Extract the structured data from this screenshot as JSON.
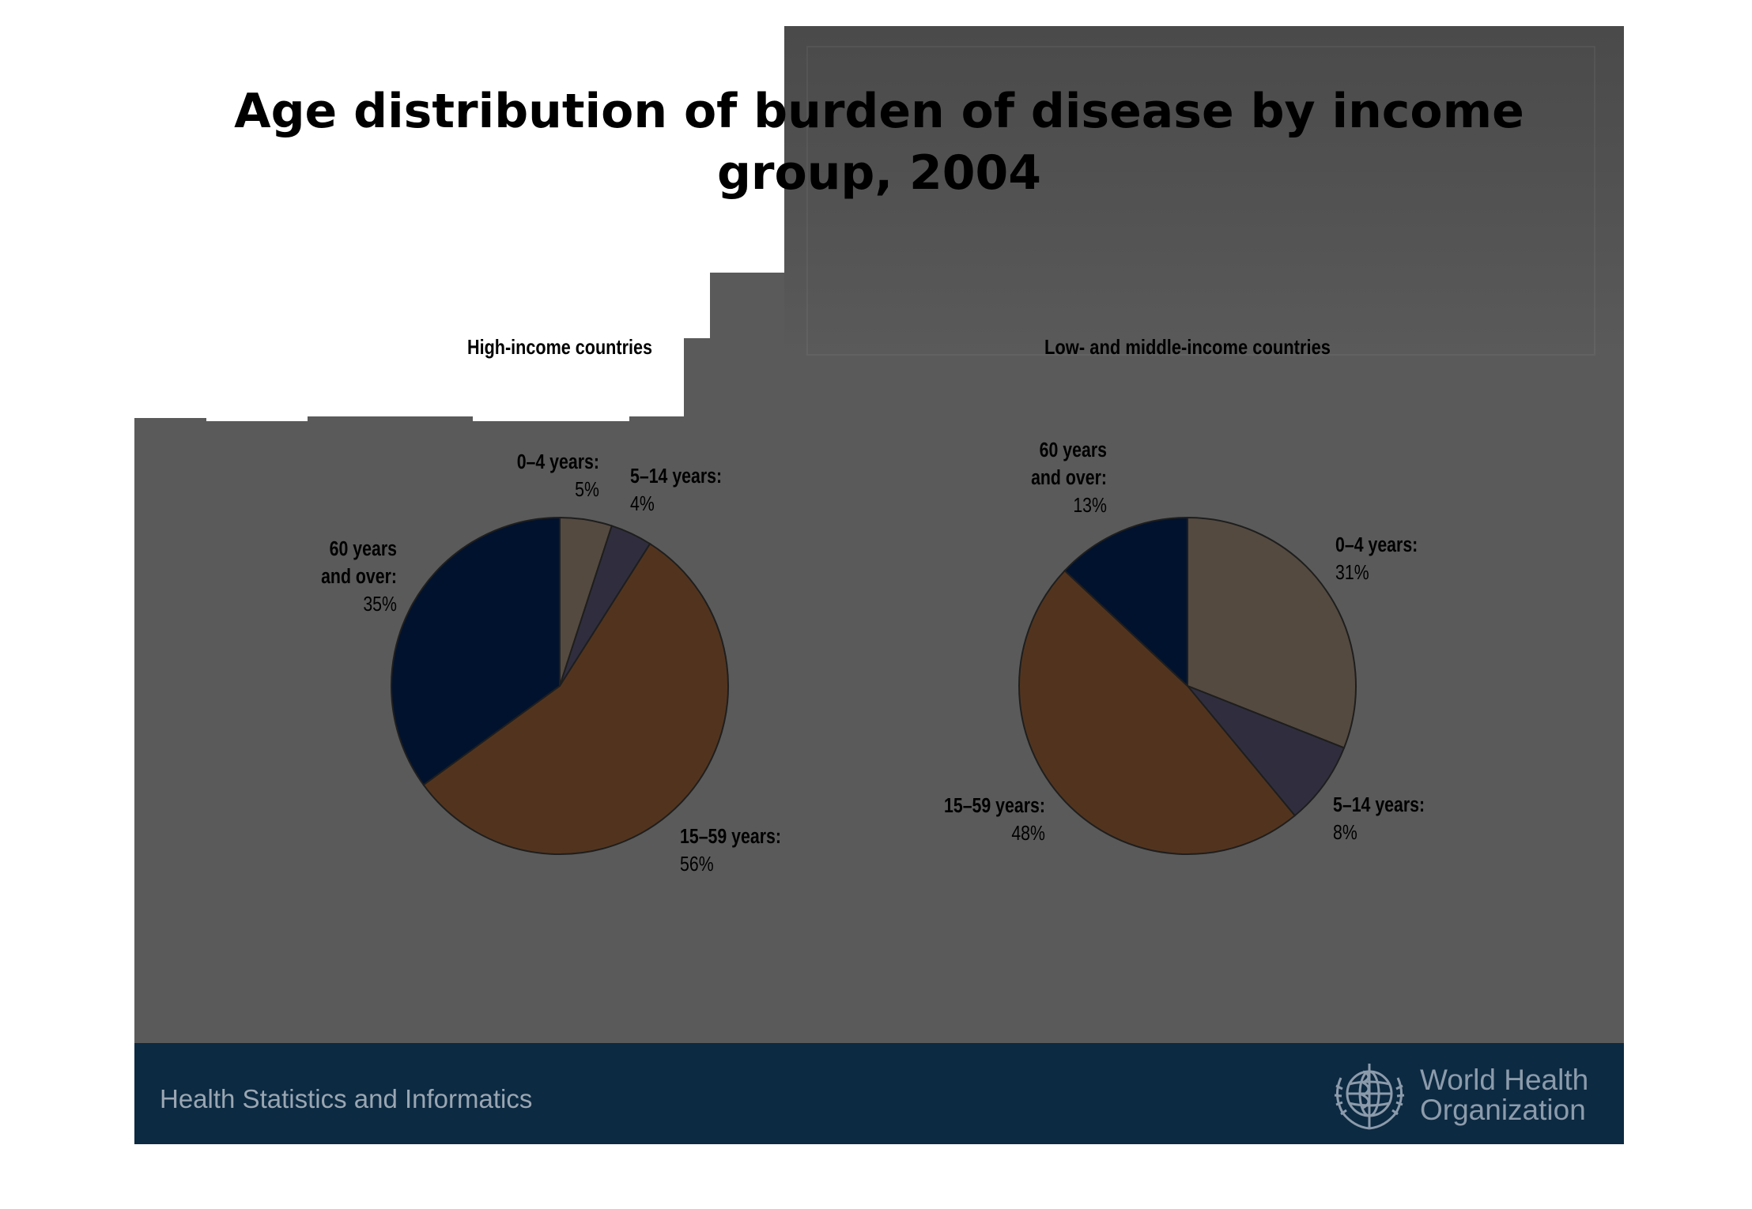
{
  "slide": {
    "title_line1": "Age distribution of burden of disease by income",
    "title_line2": "group, 2004"
  },
  "footer": {
    "department": "Health Statistics and Informatics",
    "org_line1": "World Health",
    "org_line2": "Organization",
    "logo_icon": "who-emblem-icon"
  },
  "colors": {
    "slide_bg": "#5a5a5a",
    "footer_bg": "#0c2a42",
    "age_0_4": "#544a40",
    "age_5_14": "#302e3e",
    "age_15_59": "#52341e",
    "age_60_plus": "#01122e"
  },
  "chart_data": [
    {
      "type": "pie",
      "subtitle": "High-income countries",
      "slices": [
        {
          "label_line1": "0–4 years:",
          "label_line2": "",
          "value": 5,
          "value_text": "5%",
          "color": "#544a40"
        },
        {
          "label_line1": "5–14 years:",
          "label_line2": "",
          "value": 4,
          "value_text": "4%",
          "color": "#302e3e"
        },
        {
          "label_line1": "15–59 years:",
          "label_line2": "",
          "value": 56,
          "value_text": "56%",
          "color": "#52341e"
        },
        {
          "label_line1": "60 years",
          "label_line2": "and over:",
          "value": 35,
          "value_text": "35%",
          "color": "#01122e"
        }
      ]
    },
    {
      "type": "pie",
      "subtitle": "Low- and middle-income countries",
      "slices": [
        {
          "label_line1": "0–4 years:",
          "label_line2": "",
          "value": 31,
          "value_text": "31%",
          "color": "#544a40"
        },
        {
          "label_line1": "5–14 years:",
          "label_line2": "",
          "value": 8,
          "value_text": "8%",
          "color": "#302e3e"
        },
        {
          "label_line1": "15–59 years:",
          "label_line2": "",
          "value": 48,
          "value_text": "48%",
          "color": "#52341e"
        },
        {
          "label_line1": "60 years",
          "label_line2": "and over:",
          "value": 13,
          "value_text": "13%",
          "color": "#01122e"
        }
      ]
    }
  ]
}
